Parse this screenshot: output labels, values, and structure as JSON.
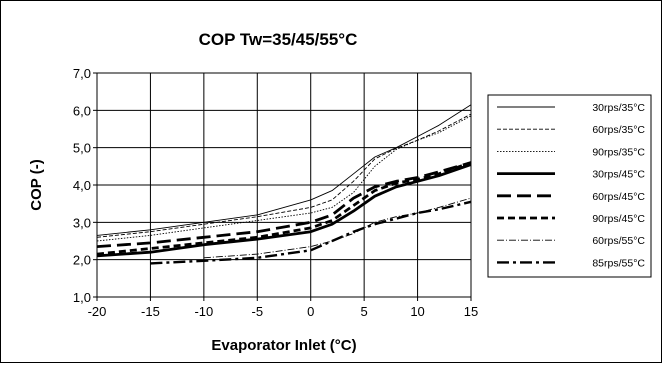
{
  "chart_data": {
    "type": "line",
    "title": "COP Tw=35/45/55°C",
    "xlabel": "Evaporator Inlet (°C)",
    "ylabel": "COP (-)",
    "xlim": [
      -20,
      15
    ],
    "ylim": [
      1.0,
      7.0
    ],
    "xticks": [
      "-20",
      "-15",
      "-10",
      "-5",
      "0",
      "5",
      "10",
      "15"
    ],
    "yticks": [
      "1,0",
      "2,0",
      "3,0",
      "4,0",
      "5,0",
      "6,0",
      "7,0"
    ],
    "grid": true,
    "legend_position": "right",
    "series": [
      {
        "name": "30rps/35°C",
        "style": "thin-solid",
        "x": [
          -20,
          -15,
          -10,
          -5,
          0,
          2,
          4,
          6,
          8,
          10,
          12,
          15
        ],
        "y": [
          2.65,
          2.8,
          3.0,
          3.2,
          3.6,
          3.85,
          4.3,
          4.75,
          5.0,
          5.3,
          5.6,
          6.15
        ]
      },
      {
        "name": "60rps/35°C",
        "style": "thin-dashed",
        "x": [
          -20,
          -15,
          -10,
          -5,
          0,
          2,
          4,
          6,
          8,
          10,
          12,
          15
        ],
        "y": [
          2.6,
          2.75,
          2.95,
          3.15,
          3.4,
          3.6,
          4.1,
          4.7,
          4.98,
          5.2,
          5.45,
          5.9
        ]
      },
      {
        "name": "90rps/35°C",
        "style": "thin-dotted",
        "x": [
          -20,
          -15,
          -10,
          -5,
          0,
          2,
          4,
          6,
          8,
          10,
          12,
          15
        ],
        "y": [
          2.5,
          2.65,
          2.85,
          3.05,
          3.25,
          3.4,
          3.8,
          4.5,
          4.95,
          5.2,
          5.4,
          5.85
        ]
      },
      {
        "name": "30rps/45°C",
        "style": "thick-solid",
        "x": [
          -20,
          -15,
          -10,
          -5,
          0,
          2,
          4,
          6,
          8,
          10,
          12,
          15
        ],
        "y": [
          2.1,
          2.2,
          2.4,
          2.55,
          2.75,
          2.95,
          3.3,
          3.7,
          3.95,
          4.1,
          4.25,
          4.55
        ]
      },
      {
        "name": "60rps/45°C",
        "style": "thick-longdash",
        "x": [
          -20,
          -15,
          -10,
          -5,
          0,
          2,
          4,
          6,
          8,
          10,
          12,
          15
        ],
        "y": [
          2.35,
          2.45,
          2.6,
          2.75,
          3.0,
          3.2,
          3.65,
          3.95,
          4.1,
          4.2,
          4.35,
          4.6
        ]
      },
      {
        "name": "90rps/45°C",
        "style": "thick-dashed",
        "x": [
          -20,
          -15,
          -10,
          -5,
          0,
          2,
          4,
          6,
          8,
          10,
          12,
          15
        ],
        "y": [
          2.15,
          2.3,
          2.45,
          2.6,
          2.85,
          3.05,
          3.45,
          3.85,
          4.05,
          4.15,
          4.3,
          4.6
        ]
      },
      {
        "name": "60rps/55°C",
        "style": "thin-dashdot",
        "x": [
          -10,
          -5,
          0,
          2,
          4,
          6,
          8,
          10,
          12,
          15
        ],
        "y": [
          2.05,
          2.15,
          2.35,
          2.5,
          2.7,
          3.0,
          3.15,
          3.25,
          3.4,
          3.65
        ]
      },
      {
        "name": "85rps/55°C",
        "style": "thick-dashdot",
        "x": [
          -15,
          -10,
          -5,
          0,
          2,
          4,
          6,
          8,
          10,
          12,
          15
        ],
        "y": [
          1.9,
          1.97,
          2.05,
          2.25,
          2.5,
          2.75,
          2.95,
          3.1,
          3.25,
          3.35,
          3.55
        ]
      }
    ]
  }
}
